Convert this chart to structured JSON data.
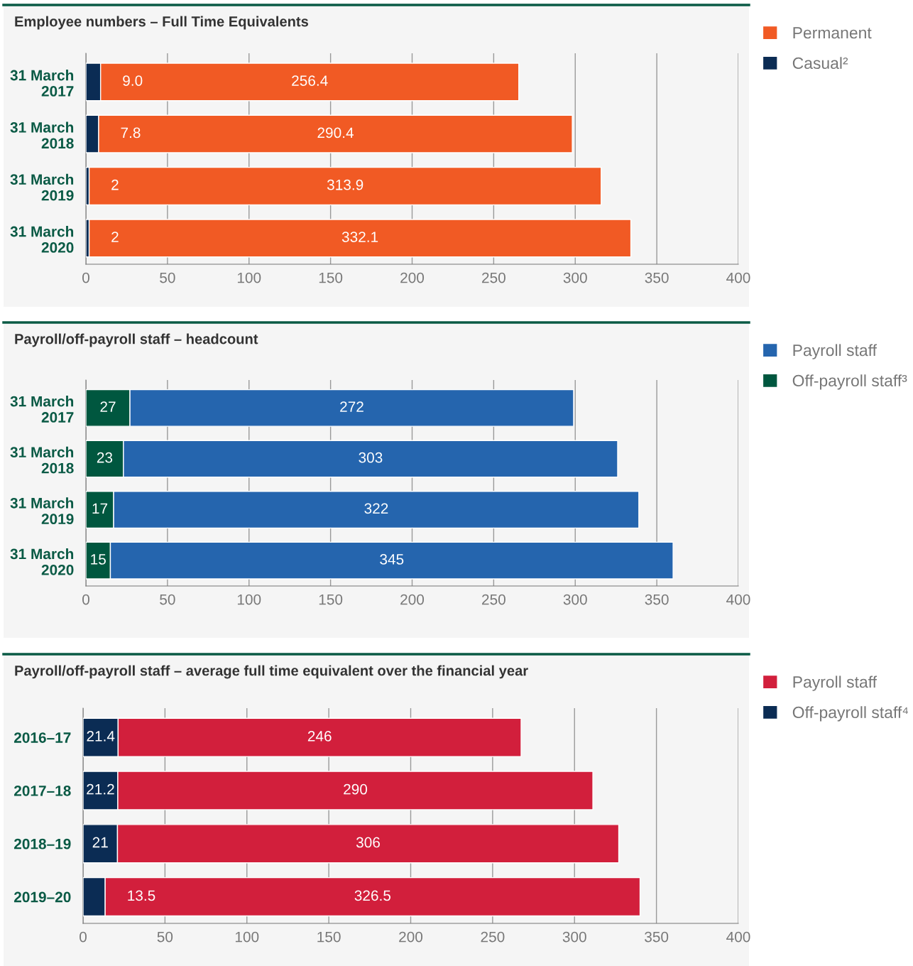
{
  "chart_data": [
    {
      "type": "bar",
      "orientation": "horizontal",
      "stacked": true,
      "title": "Employee numbers – Full Time Equivalents",
      "categories": [
        "31 March\n2017",
        "31 March\n2018",
        "31 March\n2019",
        "31 March\n2020"
      ],
      "series": [
        {
          "name": "Casual²",
          "color": "#0b2c54",
          "values": [
            9.0,
            7.8,
            2,
            2
          ]
        },
        {
          "name": "Permanent",
          "color": "#f15a24",
          "values": [
            256.4,
            290.4,
            313.9,
            332.1
          ]
        }
      ],
      "value_labels": [
        [
          "9.0",
          "7.8",
          "2",
          "2"
        ],
        [
          "256.4",
          "290.4",
          "313.9",
          "332.1"
        ]
      ],
      "xlim": [
        0,
        400
      ],
      "xticks": [
        0,
        50,
        100,
        150,
        200,
        250,
        300,
        350,
        400
      ],
      "grid": "x",
      "legend": "right"
    },
    {
      "type": "bar",
      "orientation": "horizontal",
      "stacked": true,
      "title": "Payroll/off-payroll staff – headcount",
      "categories": [
        "31 March\n2017",
        "31 March\n2018",
        "31 March\n2019",
        "31 March\n2020"
      ],
      "series": [
        {
          "name": "Off-payroll staff³",
          "color": "#00573f",
          "values": [
            27,
            23,
            17,
            15
          ]
        },
        {
          "name": "Payroll staff",
          "color": "#2565ae",
          "values": [
            272,
            303,
            322,
            345
          ]
        }
      ],
      "data_labels": true,
      "xlim": [
        0,
        400
      ],
      "xticks": [
        0,
        50,
        100,
        150,
        200,
        250,
        300,
        350,
        400
      ],
      "grid": "x",
      "legend": "right"
    },
    {
      "type": "bar",
      "orientation": "horizontal",
      "stacked": true,
      "title": "Payroll/off-payroll staff – average full time equivalent over the financial year",
      "categories": [
        "2016–17",
        "2017–18",
        "2018–19",
        "2019–20"
      ],
      "series": [
        {
          "name": "Off-payroll staff⁴",
          "color": "#0b2c54",
          "values": [
            21.4,
            21.2,
            21,
            13.5
          ]
        },
        {
          "name": "Payroll staff",
          "color": "#d21f3c",
          "values": [
            246,
            290,
            306,
            326.5
          ]
        }
      ],
      "data_labels": true,
      "xlim": [
        0,
        400
      ],
      "xticks": [
        0,
        50,
        100,
        150,
        200,
        250,
        300,
        350,
        400
      ],
      "grid": "x",
      "legend": "right"
    }
  ]
}
